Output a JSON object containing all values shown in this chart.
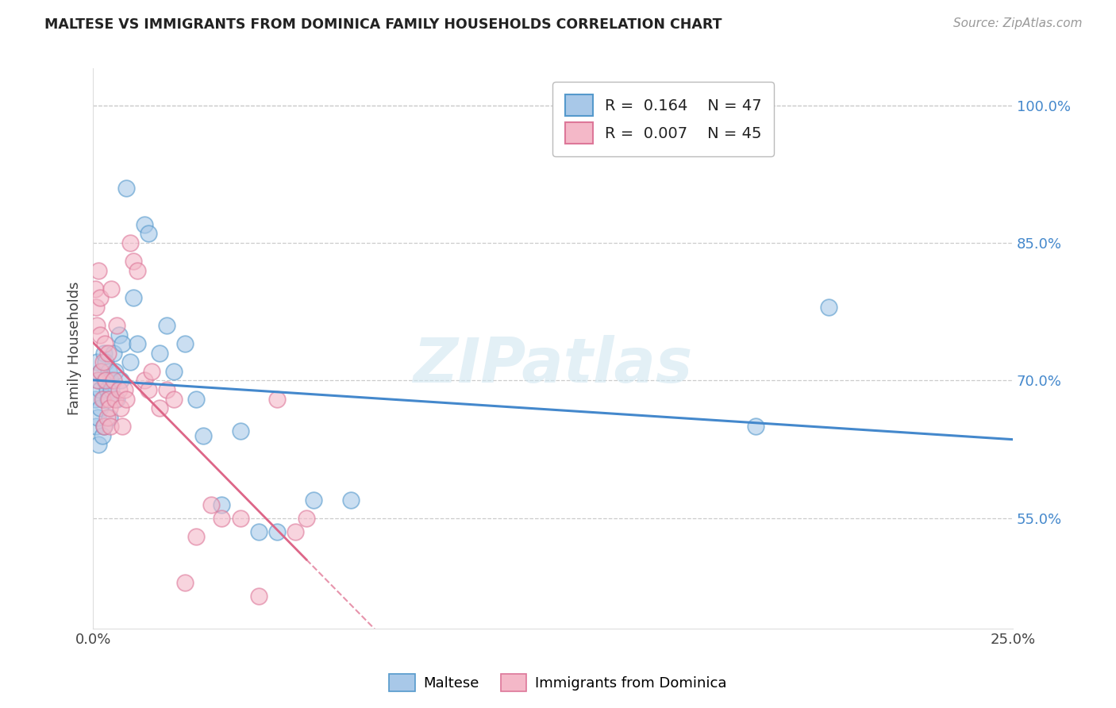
{
  "title": "MALTESE VS IMMIGRANTS FROM DOMINICA FAMILY HOUSEHOLDS CORRELATION CHART",
  "source": "Source: ZipAtlas.com",
  "xlim": [
    0.0,
    25.0
  ],
  "ylim": [
    43.0,
    104.0
  ],
  "ytick_positions": [
    55.0,
    70.0,
    85.0,
    100.0
  ],
  "xtick_positions": [
    0.0,
    25.0
  ],
  "series1_color": "#a8c8e8",
  "series2_color": "#f4b8c8",
  "series1_edge": "#5599cc",
  "series2_edge": "#dd7799",
  "line1_color": "#4488cc",
  "line2_color": "#dd6688",
  "watermark": "ZIPatlas",
  "legend_R1": "0.164",
  "legend_N1": "47",
  "legend_R2": "0.007",
  "legend_N2": "45",
  "ytick_color": "#4488cc",
  "maltese_x": [
    0.05,
    0.08,
    0.1,
    0.12,
    0.15,
    0.15,
    0.18,
    0.2,
    0.22,
    0.25,
    0.28,
    0.3,
    0.3,
    0.32,
    0.35,
    0.38,
    0.4,
    0.42,
    0.45,
    0.48,
    0.5,
    0.55,
    0.6,
    0.65,
    0.7,
    0.75,
    0.8,
    0.9,
    1.0,
    1.1,
    1.2,
    1.4,
    1.5,
    1.8,
    2.0,
    2.2,
    2.5,
    2.8,
    3.0,
    3.5,
    4.0,
    4.5,
    5.0,
    6.0,
    7.0,
    18.0,
    20.0
  ],
  "maltese_y": [
    68.0,
    65.0,
    72.0,
    66.0,
    70.0,
    63.0,
    69.0,
    67.0,
    71.0,
    64.0,
    68.0,
    73.0,
    65.0,
    70.0,
    72.0,
    69.0,
    68.0,
    71.0,
    66.0,
    70.0,
    69.0,
    73.0,
    71.0,
    68.0,
    75.0,
    70.0,
    74.0,
    91.0,
    72.0,
    79.0,
    74.0,
    87.0,
    86.0,
    73.0,
    76.0,
    71.0,
    74.0,
    68.0,
    64.0,
    56.5,
    64.5,
    53.5,
    53.5,
    57.0,
    57.0,
    65.0,
    78.0
  ],
  "dominica_x": [
    0.05,
    0.08,
    0.1,
    0.12,
    0.15,
    0.18,
    0.2,
    0.22,
    0.25,
    0.28,
    0.3,
    0.32,
    0.35,
    0.38,
    0.4,
    0.42,
    0.45,
    0.48,
    0.5,
    0.55,
    0.6,
    0.65,
    0.7,
    0.75,
    0.8,
    0.85,
    0.9,
    1.0,
    1.1,
    1.2,
    1.4,
    1.5,
    1.6,
    1.8,
    2.0,
    2.2,
    2.5,
    2.8,
    3.2,
    3.5,
    4.0,
    4.5,
    5.0,
    5.5,
    5.8
  ],
  "dominica_y": [
    80.0,
    78.0,
    76.0,
    70.0,
    82.0,
    79.0,
    75.0,
    71.0,
    68.0,
    72.0,
    65.0,
    74.0,
    70.0,
    66.0,
    73.0,
    68.0,
    67.0,
    65.0,
    80.0,
    70.0,
    68.0,
    76.0,
    69.0,
    67.0,
    65.0,
    69.0,
    68.0,
    85.0,
    83.0,
    82.0,
    70.0,
    69.0,
    71.0,
    67.0,
    69.0,
    68.0,
    48.0,
    53.0,
    56.5,
    55.0,
    55.0,
    46.5,
    68.0,
    53.5,
    55.0
  ]
}
